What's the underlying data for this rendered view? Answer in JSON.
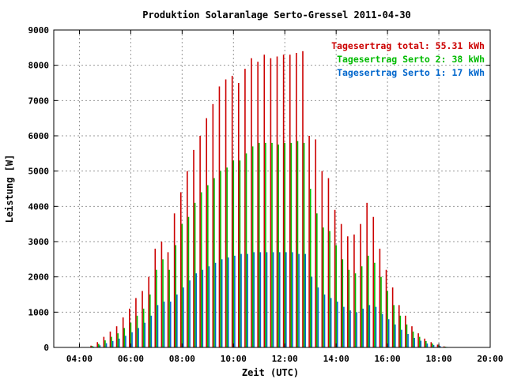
{
  "chart_data": {
    "type": "bar",
    "title": "Produktion Solaranlage Serto-Gressel 2011-04-30",
    "xlabel": "Zeit (UTC)",
    "ylabel": "Leistung [W]",
    "xlim": [
      3.0,
      20.0
    ],
    "ylim": [
      0,
      9000
    ],
    "x_ticks": [
      "04:00",
      "06:00",
      "08:00",
      "10:00",
      "12:00",
      "14:00",
      "16:00",
      "18:00",
      "20:00"
    ],
    "y_ticks": [
      "0",
      "1000",
      "2000",
      "3000",
      "4000",
      "5000",
      "6000",
      "7000",
      "8000",
      "9000"
    ],
    "grid": true,
    "legend_position": "top-right",
    "colors": {
      "total": "#cc0000",
      "serto2": "#00bb00",
      "serto1": "#0066cc"
    },
    "legend": [
      {
        "label": "Tagesertrag total: 55.31 kWh",
        "color": "#cc0000"
      },
      {
        "label": "Tagesertrag Serto 2: 38 kWh",
        "color": "#00bb00"
      },
      {
        "label": "Tagesertrag Serto 1: 17 kWh",
        "color": "#0066cc"
      }
    ],
    "x": [
      4.5,
      4.75,
      5.0,
      5.25,
      5.5,
      5.75,
      6.0,
      6.25,
      6.5,
      6.75,
      7.0,
      7.25,
      7.5,
      7.75,
      8.0,
      8.25,
      8.5,
      8.75,
      9.0,
      9.25,
      9.5,
      9.75,
      10.0,
      10.25,
      10.5,
      10.75,
      11.0,
      11.25,
      11.5,
      11.75,
      12.0,
      12.25,
      12.5,
      12.75,
      13.0,
      13.25,
      13.5,
      13.75,
      14.0,
      14.25,
      14.5,
      14.75,
      15.0,
      15.25,
      15.5,
      15.75,
      16.0,
      16.25,
      16.5,
      16.75,
      17.0,
      17.25,
      17.5,
      17.75,
      18.0,
      18.25
    ],
    "series": [
      {
        "name": "Tagesertrag total",
        "values": [
          50,
          150,
          300,
          450,
          600,
          850,
          1100,
          1400,
          1600,
          2000,
          2800,
          3000,
          2700,
          3800,
          4400,
          5000,
          5600,
          6000,
          6500,
          6900,
          7400,
          7600,
          7700,
          7500,
          7900,
          8200,
          8100,
          8300,
          8200,
          8250,
          8300,
          8300,
          8350,
          8400,
          6000,
          5900,
          5000,
          4800,
          3900,
          3500,
          3150,
          3200,
          3500,
          4100,
          3700,
          2800,
          2200,
          1700,
          1200,
          900,
          600,
          400,
          250,
          150,
          80,
          30
        ]
      },
      {
        "name": "Tagesertrag Serto 2",
        "values": [
          40,
          100,
          200,
          300,
          400,
          550,
          700,
          900,
          1100,
          1500,
          2200,
          2500,
          2200,
          2900,
          3500,
          3700,
          4100,
          4400,
          4600,
          4800,
          5000,
          5100,
          5300,
          5300,
          5500,
          5700,
          5800,
          5800,
          5800,
          5750,
          5800,
          5800,
          5850,
          5800,
          4500,
          3800,
          3400,
          3300,
          2900,
          2500,
          2200,
          2100,
          2300,
          2600,
          2400,
          2000,
          1600,
          1200,
          900,
          650,
          450,
          300,
          180,
          110,
          60,
          20
        ]
      },
      {
        "name": "Tagesertrag Serto 1",
        "values": [
          20,
          60,
          120,
          180,
          250,
          330,
          430,
          550,
          700,
          900,
          1200,
          1300,
          1300,
          1500,
          1700,
          1900,
          2100,
          2200,
          2300,
          2400,
          2500,
          2550,
          2600,
          2650,
          2650,
          2700,
          2700,
          2700,
          2700,
          2700,
          2700,
          2700,
          2650,
          2650,
          2000,
          1700,
          1500,
          1400,
          1300,
          1150,
          1050,
          1000,
          1100,
          1200,
          1150,
          950,
          800,
          650,
          500,
          380,
          270,
          190,
          110,
          70,
          40,
          15
        ]
      }
    ]
  }
}
